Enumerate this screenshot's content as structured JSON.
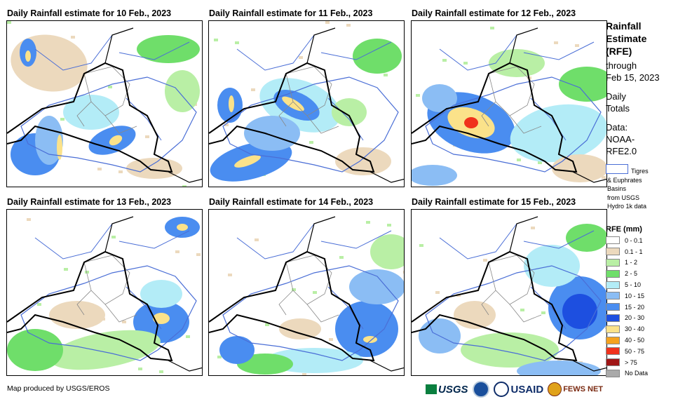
{
  "panels": [
    {
      "title": "Daily Rainfall estimate for 10 Feb., 2023"
    },
    {
      "title": "Daily Rainfall estimate for 11 Feb., 2023"
    },
    {
      "title": "Daily Rainfall estimate for 12 Feb., 2023"
    },
    {
      "title": "Daily Rainfall estimate for 13 Feb., 2023"
    },
    {
      "title": "Daily Rainfall estimate for 14 Feb., 2023"
    },
    {
      "title": "Daily Rainfall estimate for 15 Feb., 2023"
    }
  ],
  "sidebar": {
    "title_lines": [
      "Rainfall",
      "Estimate",
      "(RFE)"
    ],
    "through_lines": [
      "through",
      "Feb 15, 2023"
    ],
    "daily_lines": [
      "Daily",
      "Totals"
    ],
    "data_lines": [
      "Data:",
      "NOAA-",
      "RFE2.0"
    ],
    "basin_lines": [
      "Tigres",
      "& Euphrates",
      "Basins",
      "from USGS",
      "Hydro 1k data"
    ]
  },
  "legend": {
    "title": "RFE (mm)",
    "items": [
      {
        "label": "0 - 0.1",
        "color": "#ffffff"
      },
      {
        "label": "0.1 - 1",
        "color": "#ecd9bd"
      },
      {
        "label": "1 - 2",
        "color": "#b9efa5"
      },
      {
        "label": "2 - 5",
        "color": "#6fde6a"
      },
      {
        "label": "5 - 10",
        "color": "#b3ecf7"
      },
      {
        "label": "10 - 15",
        "color": "#8bbdf4"
      },
      {
        "label": "15 - 20",
        "color": "#4a8df0"
      },
      {
        "label": "20 - 30",
        "color": "#1d4fe0"
      },
      {
        "label": "30 - 40",
        "color": "#fbe28a"
      },
      {
        "label": "40 - 50",
        "color": "#f5a21e"
      },
      {
        "label": "50 - 75",
        "color": "#f0321c"
      },
      {
        "label": "> 75",
        "color": "#a01616"
      },
      {
        "label": "No Data",
        "color": "#aaaaaa"
      }
    ]
  },
  "footer": {
    "credit": "Map produced by USGS/EROS",
    "logos": [
      "USGS",
      "NOAA",
      "USAID",
      "FEWS NET"
    ]
  }
}
